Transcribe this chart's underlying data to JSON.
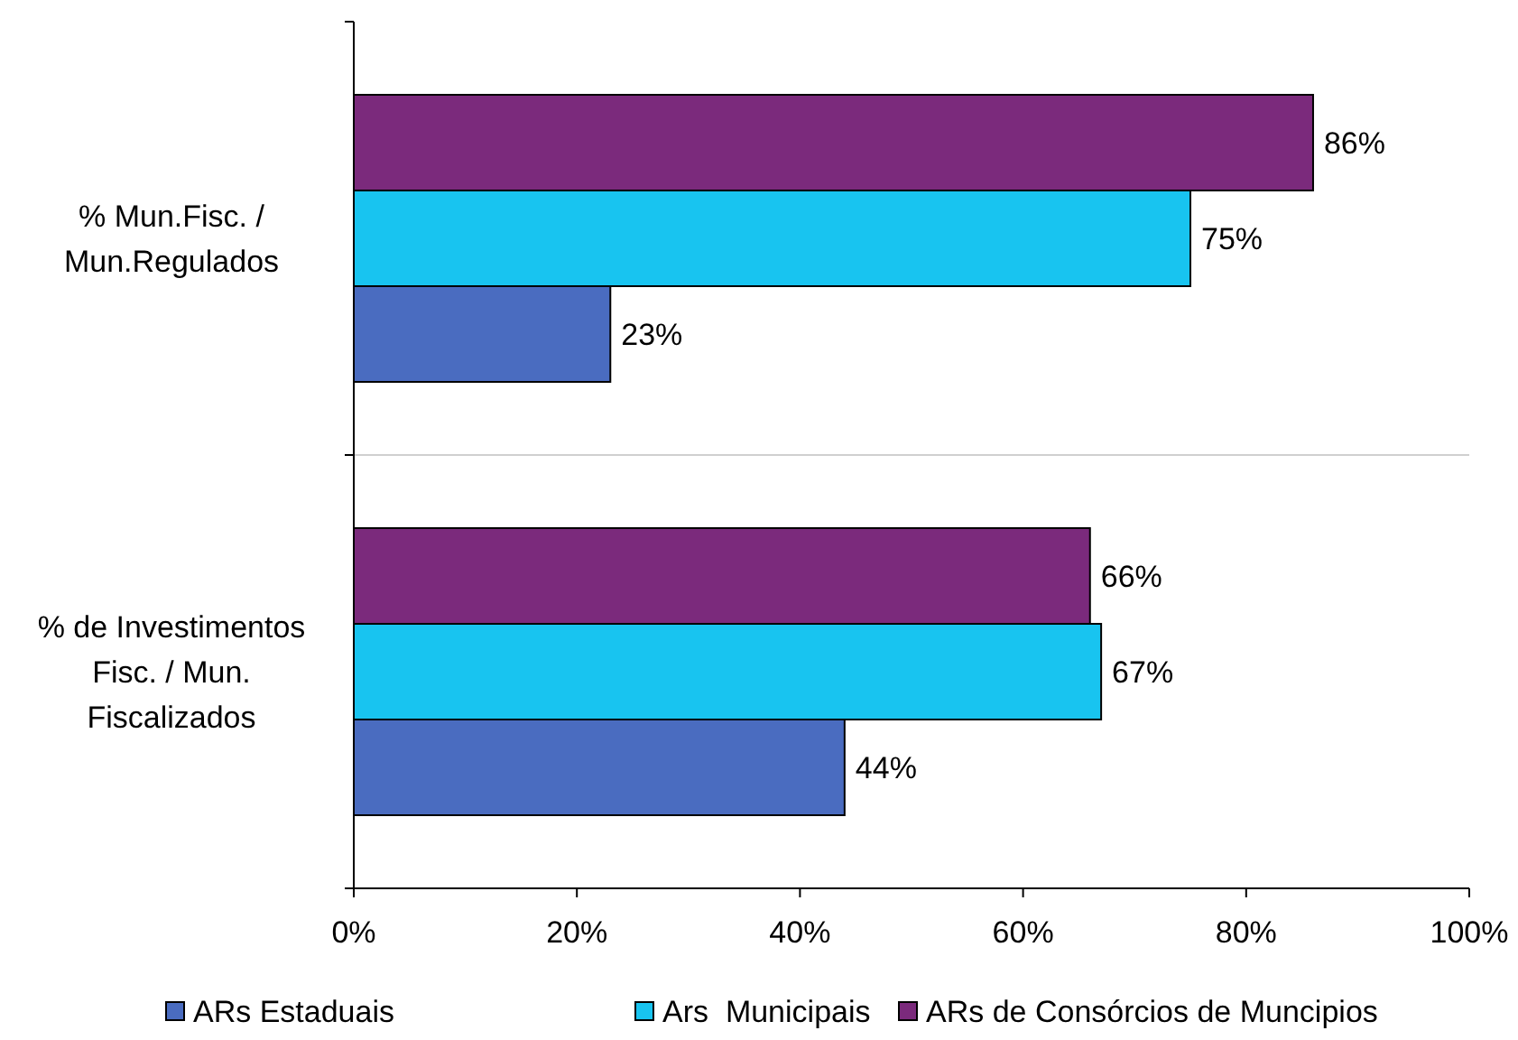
{
  "chart_data": {
    "type": "bar",
    "orientation": "horizontal",
    "categories": [
      "% Mun.Fisc. / Mun.Regulados",
      "% de Investimentos Fisc. / Mun. Fiscalizados"
    ],
    "series": [
      {
        "name": "ARs Estaduais",
        "color": "#4a6cc0",
        "values": [
          23,
          44
        ],
        "value_labels": [
          "23%",
          "44%"
        ]
      },
      {
        "name": "Ars  Municipais",
        "color": "#18c4f0",
        "values": [
          75,
          67
        ],
        "value_labels": [
          "75%",
          "67%"
        ]
      },
      {
        "name": "ARs de Consórcios de Muncipios",
        "color": "#7b2a7c",
        "values": [
          86,
          66
        ],
        "value_labels": [
          "86%",
          "66%"
        ]
      }
    ],
    "xlim": [
      0,
      100
    ],
    "xticks": [
      {
        "value": 0,
        "label": "0%"
      },
      {
        "value": 20,
        "label": "20%"
      },
      {
        "value": 40,
        "label": "40%"
      },
      {
        "value": 60,
        "label": "60%"
      },
      {
        "value": 80,
        "label": "80%"
      },
      {
        "value": 100,
        "label": "100%"
      }
    ],
    "grid": "y",
    "legend": "bottom"
  }
}
